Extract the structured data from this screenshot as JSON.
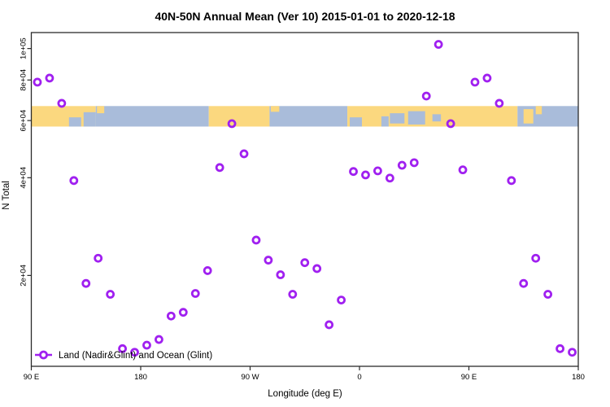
{
  "chart_data": {
    "type": "scatter",
    "title": "40N-50N Annual Mean (Ver 10)   2015-01-01 to 2020-12-18",
    "xlabel": "Longitude (deg E)",
    "ylabel": "N Total",
    "x_axis": {
      "min": 90,
      "max": 540,
      "wrap_longitude": true,
      "ticks": [
        {
          "lon": 90,
          "label": "90 E"
        },
        {
          "lon": 180,
          "label": "180"
        },
        {
          "lon": 270,
          "label": "90 W"
        },
        {
          "lon": 360,
          "label": "0"
        },
        {
          "lon": 450,
          "label": "90 E"
        },
        {
          "lon": 540,
          "label": "180"
        }
      ]
    },
    "y_axis": {
      "scale": "log10",
      "min": 10500,
      "max": 112000,
      "ticks": [
        {
          "value": 20000,
          "label": "2e+04"
        },
        {
          "value": 40000,
          "label": "4e+04"
        },
        {
          "value": 60000,
          "label": "6e+04"
        },
        {
          "value": 80000,
          "label": "8e+04"
        },
        {
          "value": 100000,
          "label": "1e+05"
        }
      ]
    },
    "series": [
      {
        "name": "Land (Nadir&Glint) and Ocean (Glint)",
        "marker": "open-circle",
        "color": "#A020F0",
        "points": [
          {
            "lon": 5,
            "n": 40800
          },
          {
            "lon": 15,
            "n": 42000
          },
          {
            "lon": 25,
            "n": 39900
          },
          {
            "lon": 35,
            "n": 43700
          },
          {
            "lon": 45,
            "n": 44500
          },
          {
            "lon": 55,
            "n": 71400
          },
          {
            "lon": 65,
            "n": 103000
          },
          {
            "lon": 75,
            "n": 58700
          },
          {
            "lon": 85,
            "n": 42300
          },
          {
            "lon": 95,
            "n": 78800
          },
          {
            "lon": 105,
            "n": 81100
          },
          {
            "lon": 115,
            "n": 67800
          },
          {
            "lon": 125,
            "n": 39200
          },
          {
            "lon": 135,
            "n": 18900
          },
          {
            "lon": 145,
            "n": 22600
          },
          {
            "lon": 155,
            "n": 17500
          },
          {
            "lon": 165,
            "n": 11900
          },
          {
            "lon": 175,
            "n": 11600
          },
          {
            "lon": 185,
            "n": 12200
          },
          {
            "lon": 195,
            "n": 12700
          },
          {
            "lon": 205,
            "n": 15000
          },
          {
            "lon": 215,
            "n": 15400
          },
          {
            "lon": 225,
            "n": 17600
          },
          {
            "lon": 235,
            "n": 20700
          },
          {
            "lon": 245,
            "n": 43000
          },
          {
            "lon": 255,
            "n": 58700
          },
          {
            "lon": 265,
            "n": 47400
          },
          {
            "lon": 275,
            "n": 25700
          },
          {
            "lon": 285,
            "n": 22300
          },
          {
            "lon": 295,
            "n": 20100
          },
          {
            "lon": 305,
            "n": 17500
          },
          {
            "lon": 315,
            "n": 21900
          },
          {
            "lon": 325,
            "n": 21000
          },
          {
            "lon": 335,
            "n": 14100
          },
          {
            "lon": 345,
            "n": 16800
          },
          {
            "lon": 355,
            "n": 41800
          }
        ]
      }
    ],
    "map_band": {
      "description": "40N-50N latitude land/ocean strip",
      "top_value": 66500,
      "bottom_value": 57500,
      "land_color": "#FBD87F",
      "ocean_color": "#A9BCDA",
      "segments": [
        {
          "from": 90,
          "to": 143,
          "type": "land"
        },
        {
          "from": 143,
          "to": 236,
          "type": "ocean"
        },
        {
          "from": 236,
          "to": 286,
          "type": "land"
        },
        {
          "from": 286,
          "to": 350,
          "type": "ocean"
        },
        {
          "from": 350,
          "to": 490,
          "type": "land"
        },
        {
          "from": 490,
          "to": 540,
          "type": "ocean"
        }
      ],
      "patches": [
        {
          "from": 121,
          "to": 131,
          "top": 0.55,
          "bottom": 1.0,
          "type": "ocean"
        },
        {
          "from": 133,
          "to": 143,
          "top": 0.3,
          "bottom": 1.0,
          "type": "ocean"
        },
        {
          "from": 144,
          "to": 150,
          "top": 0.0,
          "bottom": 0.35,
          "type": "land"
        },
        {
          "from": 287,
          "to": 294,
          "top": 0.0,
          "bottom": 0.28,
          "type": "land"
        },
        {
          "from": 352,
          "to": 362,
          "top": 0.55,
          "bottom": 1.0,
          "type": "ocean"
        },
        {
          "from": 378,
          "to": 384,
          "top": 0.5,
          "bottom": 1.0,
          "type": "ocean"
        },
        {
          "from": 385,
          "to": 397,
          "top": 0.35,
          "bottom": 0.85,
          "type": "ocean"
        },
        {
          "from": 400,
          "to": 414,
          "top": 0.25,
          "bottom": 0.9,
          "type": "ocean"
        },
        {
          "from": 420,
          "to": 427,
          "top": 0.4,
          "bottom": 0.75,
          "type": "ocean"
        },
        {
          "from": 495,
          "to": 503,
          "top": 0.15,
          "bottom": 0.85,
          "type": "land"
        },
        {
          "from": 505,
          "to": 510,
          "top": 0.0,
          "bottom": 0.4,
          "type": "land"
        }
      ]
    }
  },
  "legend": {
    "label": "Land (Nadir&Glint) and Ocean (Glint)"
  }
}
